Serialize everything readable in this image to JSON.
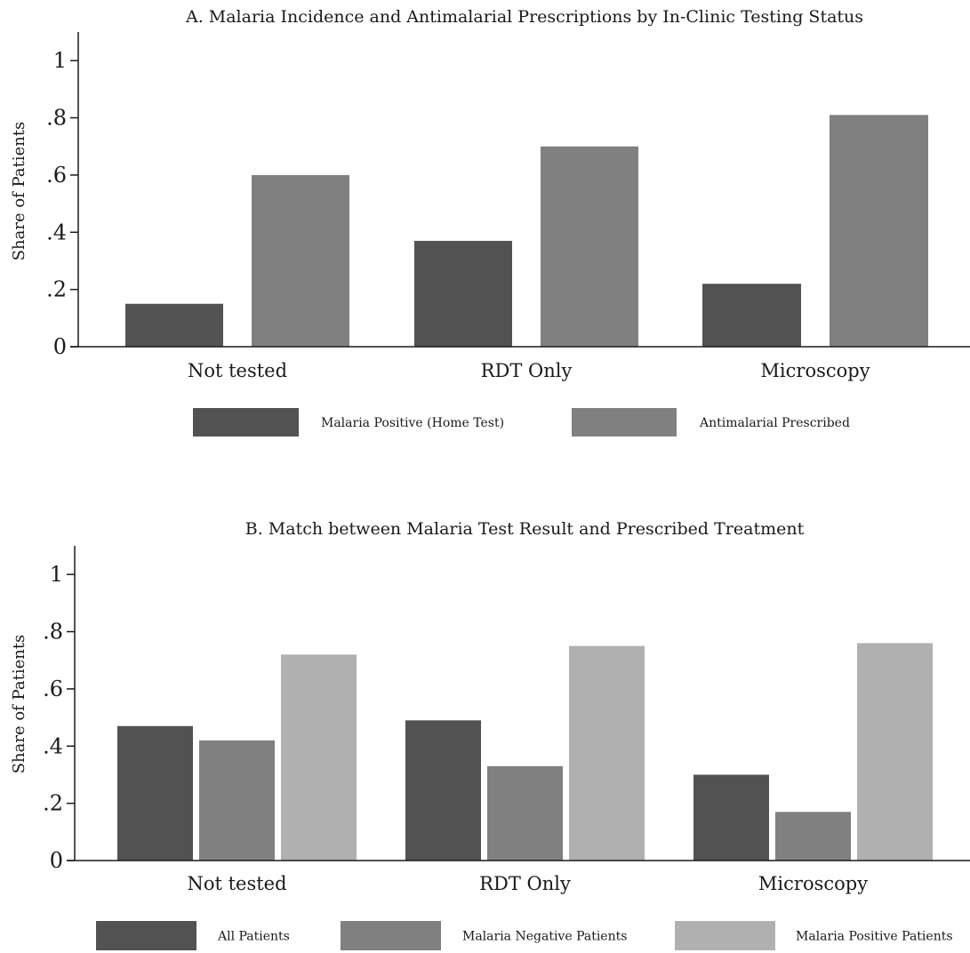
{
  "chart_data": [
    {
      "type": "bar",
      "title": "A. Malaria Incidence and Antimalarial Prescriptions by In-Clinic Testing Status",
      "xlabel": "",
      "ylabel": "Share of Patients",
      "ylim": [
        0,
        1.1
      ],
      "yticks": [
        0,
        0.2,
        0.4,
        0.6,
        0.8,
        1
      ],
      "ytick_labels": [
        "0",
        ".2",
        ".4",
        ".6",
        ".8",
        "1"
      ],
      "categories": [
        "Not tested",
        "RDT Only",
        "Microscopy"
      ],
      "series": [
        {
          "name": "Malaria Positive (Home Test)",
          "color": "#525252",
          "values": [
            0.15,
            0.37,
            0.22
          ]
        },
        {
          "name": "Antimalarial Prescribed",
          "color": "#808080",
          "values": [
            0.6,
            0.7,
            0.81
          ]
        }
      ],
      "grid": false,
      "legend": "bottom"
    },
    {
      "type": "bar",
      "title": "B. Match between Malaria Test Result and Prescribed Treatment",
      "xlabel": "",
      "ylabel": "Share of Patients",
      "ylim": [
        0,
        1.1
      ],
      "yticks": [
        0,
        0.2,
        0.4,
        0.6,
        0.8,
        1
      ],
      "ytick_labels": [
        "0",
        ".2",
        ".4",
        ".6",
        ".8",
        "1"
      ],
      "categories": [
        "Not tested",
        "RDT Only",
        "Microscopy"
      ],
      "series": [
        {
          "name": "All Patients",
          "color": "#525252",
          "values": [
            0.47,
            0.49,
            0.3
          ]
        },
        {
          "name": "Malaria Negative Patients",
          "color": "#808080",
          "values": [
            0.42,
            0.33,
            0.17
          ]
        },
        {
          "name": "Malaria Positive Patients",
          "color": "#b0b0b0",
          "values": [
            0.72,
            0.75,
            0.76
          ]
        }
      ],
      "grid": false,
      "legend": "bottom"
    }
  ]
}
